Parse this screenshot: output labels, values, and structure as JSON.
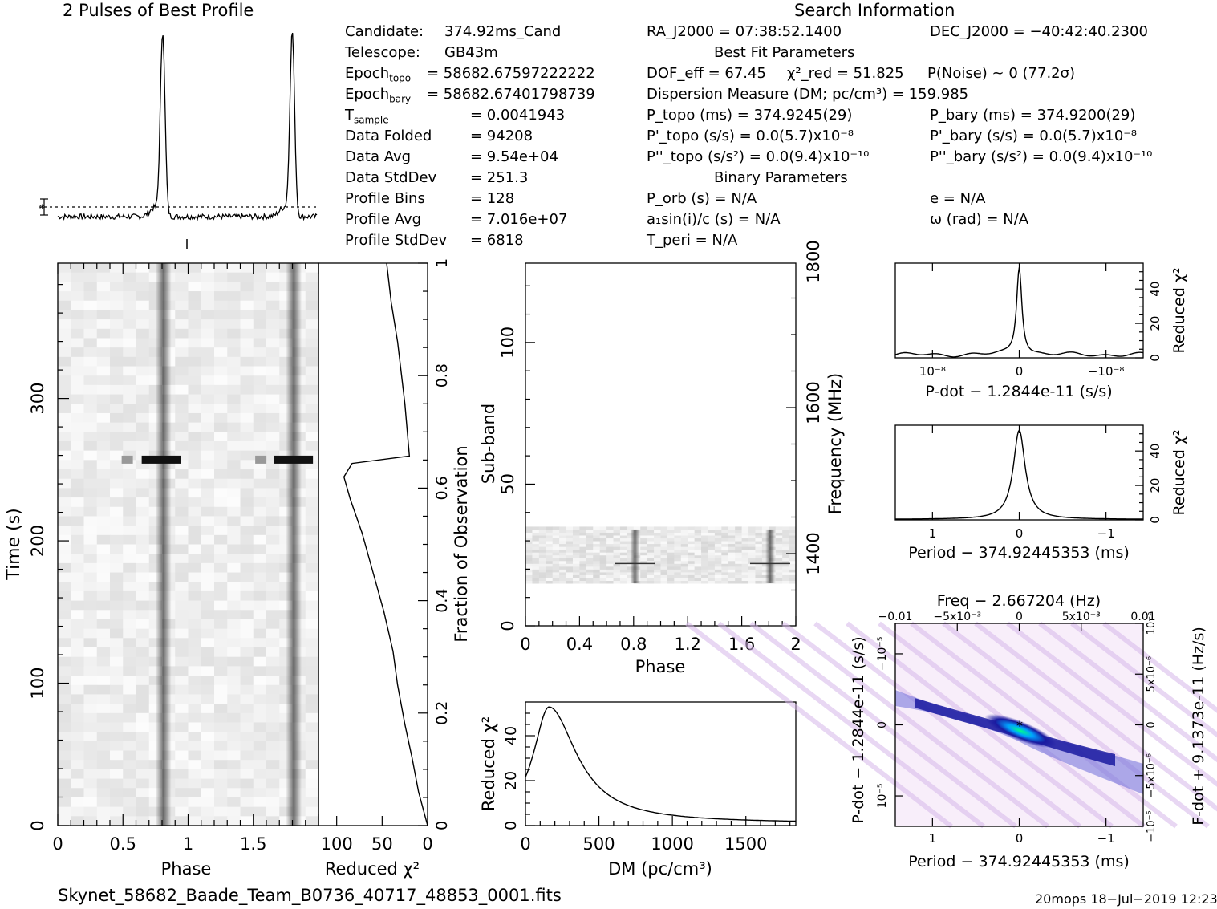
{
  "header": {
    "profile_title": "2 Pulses of Best Profile",
    "search_title": "Search Information",
    "best_fit_title": "Best Fit Parameters",
    "binary_title": "Binary Parameters"
  },
  "candidate_info": [
    {
      "label": "Candidate:",
      "value": "374.92ms_Cand"
    },
    {
      "label": "Telescope:",
      "value": "GB43m"
    },
    {
      "label": "Epoch_topo",
      "value": "= 58682.67597222222"
    },
    {
      "label": "Epoch_bary",
      "value": "= 58682.67401798739"
    },
    {
      "label": "T_sample",
      "value": "=   0.0041943"
    },
    {
      "label": "Data Folded",
      "value": "=   94208"
    },
    {
      "label": "Data Avg",
      "value": "=   9.54e+04"
    },
    {
      "label": "Data StdDev",
      "value": "=   251.3"
    },
    {
      "label": "Profile Bins",
      "value": "=   128"
    },
    {
      "label": "Profile Avg",
      "value": "=   7.016e+07"
    },
    {
      "label": "Profile StdDev",
      "value": "=   6818"
    }
  ],
  "search_info": {
    "ra": "RA_J2000 = 07:38:52.1400",
    "dec": "DEC_J2000 = −40:42:40.2300",
    "dof": "DOF_eff = 67.45",
    "chi2": "χ²_red = 51.825",
    "pnoise": "P(Noise) ~ 0    (77.2σ)",
    "dm": "Dispersion Measure (DM; pc/cm³) = 159.985",
    "ptopo": "P_topo (ms) =  374.9245(29)",
    "pbary": "P_bary (ms) =  374.9200(29)",
    "pdtopo": "P'_topo (s/s) = 0.0(5.7)x10⁻⁸",
    "pdbary": "P'_bary (s/s) = 0.0(5.7)x10⁻⁸",
    "pddtopo": "P''_topo (s/s²) = 0.0(9.4)x10⁻¹⁰",
    "pddbary": "P''_bary (s/s²) = 0.0(9.4)x10⁻¹⁰",
    "porb": "P_orb (s) = N/A",
    "ecc": "e = N/A",
    "a1": "a₁sin(i)/c (s) = N/A",
    "omega": "ω (rad) = N/A",
    "tperi": "T_peri = N/A"
  },
  "footer": {
    "filename": "Skynet_58682_Baade_Team_B0736_40717_48853_0001.fits",
    "stamp": "20mops  18−Jul−2019 12:23"
  },
  "chart_data": [
    {
      "id": "profile",
      "type": "line",
      "title": "2 Pulses of Best Profile",
      "x_range": [
        0,
        2
      ],
      "peaks": [
        0.81,
        1.81
      ],
      "peak_width": 0.018
    },
    {
      "id": "time-phase",
      "type": "heatmap",
      "xlabel": "Phase",
      "ylabel": "Time (s)",
      "x_ticks": [
        "0",
        "0.5",
        "1",
        "1.5"
      ],
      "y_ticks": [
        "0",
        "100",
        "200",
        "300"
      ],
      "xlim": [
        0,
        2
      ],
      "ylim": [
        0,
        395
      ],
      "pulse_phases": [
        0.81,
        1.81
      ],
      "bright_time_s": 257
    },
    {
      "id": "fraction-chi2",
      "type": "line",
      "xlabel": "Reduced χ²",
      "ylabel": "Fraction of Observation",
      "x_ticks": [
        "100",
        "50",
        "0"
      ],
      "y_ticks": [
        "0",
        "0.2",
        "0.4",
        "0.6",
        "0.8",
        "1"
      ],
      "xlim": [
        120,
        0
      ],
      "ylim": [
        0,
        1
      ],
      "points": [
        [
          0,
          0
        ],
        [
          10,
          0.06
        ],
        [
          17,
          0.12
        ],
        [
          25,
          0.18
        ],
        [
          33,
          0.25
        ],
        [
          38,
          0.31
        ],
        [
          48,
          0.38
        ],
        [
          60,
          0.45
        ],
        [
          72,
          0.52
        ],
        [
          85,
          0.58
        ],
        [
          92,
          0.62
        ],
        [
          83,
          0.644
        ],
        [
          20,
          0.657
        ],
        [
          25,
          0.75
        ],
        [
          33,
          0.86
        ],
        [
          40,
          0.93
        ],
        [
          45,
          1.0
        ]
      ]
    },
    {
      "id": "subband-phase",
      "type": "heatmap",
      "xlabel": "Phase",
      "ylabel": "Sub-band",
      "y2label": "Frequency (MHz)",
      "x_ticks": [
        "0",
        "0.4",
        "0.8",
        "1.2",
        "1.6",
        "2"
      ],
      "y_ticks": [
        "0",
        "50",
        "100"
      ],
      "y2_ticks": [
        "1400",
        "1600",
        "1800"
      ],
      "xlim": [
        0,
        2
      ],
      "ylim": [
        0,
        128
      ],
      "active_subbands": [
        15,
        35
      ],
      "pulse_phases": [
        0.81,
        1.81
      ]
    },
    {
      "id": "dm-chi2",
      "type": "line",
      "xlabel": "DM (pc/cm³)",
      "ylabel": "Reduced χ²",
      "x_ticks": [
        "0",
        "500",
        "1000",
        "1500"
      ],
      "y_ticks": [
        "0",
        "20",
        "40"
      ],
      "xlim": [
        0,
        1840
      ],
      "ylim": [
        0,
        55
      ],
      "peak_dm": 160,
      "peak_value": 51.8
    },
    {
      "id": "pdot-chi2",
      "type": "line",
      "xlabel": "P-dot − 1.2844e-11 (s/s)",
      "ylabel": "Reduced χ²",
      "x_ticks": [
        "10⁻⁸",
        "0",
        "−10⁻⁸"
      ],
      "y_ticks": [
        "0",
        "20",
        "40"
      ],
      "ylim": [
        0,
        55
      ]
    },
    {
      "id": "period-chi2",
      "type": "line",
      "xlabel": "Period − 374.92445353 (ms)",
      "ylabel": "Reduced χ²",
      "x_ticks": [
        "1",
        "0",
        "−1"
      ],
      "y_ticks": [
        "0",
        "20",
        "40"
      ],
      "ylim": [
        0,
        55
      ]
    },
    {
      "id": "p-pdot-plane",
      "type": "heatmap",
      "title": "Freq − 2.667204 (Hz)",
      "xlabel": "Period − 374.92445353 (ms)",
      "ylabel": "P-dot − 1.2844e-11 (s/s)",
      "y2label": "F-dot + 9.1373e-11 (Hz/s)",
      "x_ticks": [
        "1",
        "0",
        "−1"
      ],
      "x2_ticks": [
        "−0.01",
        "−5x10⁻³",
        "0",
        "5x10⁻³",
        "0.01"
      ],
      "y_ticks": [
        "10⁻⁵",
        "0",
        "−10⁻⁵"
      ],
      "y2_ticks": [
        "−10⁻⁵",
        "−5x10⁻⁶",
        "0",
        "5x10⁻⁶",
        "10⁻⁵"
      ]
    }
  ]
}
